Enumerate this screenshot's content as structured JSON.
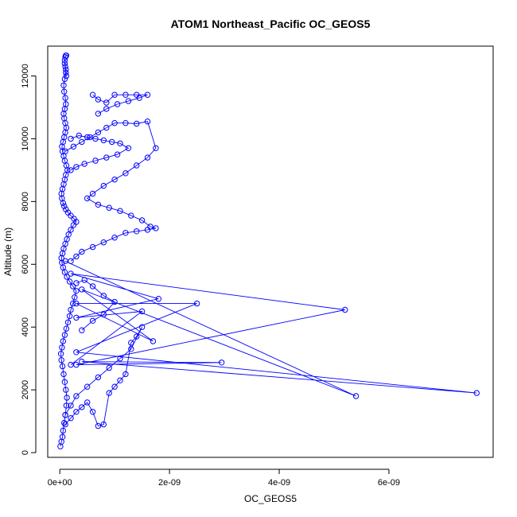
{
  "chart_data": {
    "type": "line",
    "title": "ATOM1 Northeast_Pacific OC_GEOS5",
    "xlabel": "OC_GEOS5",
    "ylabel": "Altitude (m)",
    "xlim": [
      -2.2e-10,
      7.9e-09
    ],
    "ylim": [
      -150,
      12950
    ],
    "x_ticks": [
      {
        "value": 0,
        "label": "0e+00"
      },
      {
        "value": 2e-09,
        "label": "2e-09"
      },
      {
        "value": 4e-09,
        "label": "4e-09"
      },
      {
        "value": 6e-09,
        "label": "6e-09"
      }
    ],
    "y_ticks": [
      {
        "value": 0,
        "label": "0"
      },
      {
        "value": 2000,
        "label": "2000"
      },
      {
        "value": 4000,
        "label": "4000"
      },
      {
        "value": 6000,
        "label": "6000"
      },
      {
        "value": 8000,
        "label": "8000"
      },
      {
        "value": 10000,
        "label": "10000"
      },
      {
        "value": 12000,
        "label": "12000"
      }
    ],
    "color": "#0000ff",
    "marker": "open-circle",
    "line": true,
    "grid": false,
    "legend": "none",
    "series": [
      {
        "x": [
          1e-11,
          3e-11,
          5e-11,
          6e-11,
          8e-11,
          1e-10,
          1.2e-10,
          1.3e-10,
          1.1e-10,
          9e-11,
          7e-11,
          5e-11,
          3e-11,
          2e-11,
          4e-11,
          6e-11,
          9e-11,
          1.2e-10,
          1.5e-10,
          1.8e-10,
          2e-10,
          2.4e-10,
          2.7e-10,
          3e-10,
          2.4e-10,
          1.8e-10,
          1.3e-10,
          9e-11,
          6e-11,
          4e-11,
          3e-11,
          5e-11,
          7e-11,
          1e-10,
          1.3e-10,
          1.6e-10,
          2e-10,
          2.5e-10,
          3e-10,
          2.6e-10,
          2e-10,
          1.5e-10,
          1.1e-10,
          8e-11,
          6e-11,
          4e-11,
          3e-11,
          5e-11,
          7e-11,
          9e-11,
          1.1e-10,
          1.4e-10,
          1.2e-10,
          9e-11,
          7e-11,
          5e-11,
          4e-11,
          6e-11,
          8e-11,
          1e-10,
          1.2e-10,
          1e-10,
          8e-11,
          7e-11,
          9e-11,
          1.1e-10,
          1e-10,
          8e-11,
          7e-11,
          9e-11,
          1.1e-10,
          1e-10,
          9e-11,
          1.1e-10,
          1.2e-10,
          1e-10,
          9e-11,
          1.1e-10,
          1.2e-10
        ],
        "y": [
          200,
          350,
          500,
          700,
          950,
          1200,
          1500,
          1750,
          2000,
          2250,
          2500,
          2750,
          2950,
          3150,
          3350,
          3550,
          3750,
          3950,
          4150,
          4350,
          4550,
          4750,
          4950,
          5150,
          5300,
          5450,
          5600,
          5750,
          5900,
          6050,
          6200,
          6350,
          6500,
          6650,
          6800,
          6950,
          7100,
          7250,
          7350,
          7450,
          7550,
          7650,
          7750,
          7850,
          7950,
          8100,
          8250,
          8400,
          8550,
          8700,
          8850,
          9000,
          9150,
          9300,
          9450,
          9600,
          9750,
          9900,
          10050,
          10200,
          10350,
          10500,
          10650,
          10800,
          10950,
          11100,
          11300,
          11500,
          11700,
          11900,
          12100,
          12300,
          12500,
          12650,
          12650,
          12600,
          12400,
          12200,
          12000
        ]
      },
      {
        "x": [
          1e-10,
          2.5e-10,
          4e-10,
          5.5e-10,
          7e-10,
          8.5e-10,
          1e-09,
          1.2e-09,
          1.4e-09,
          1.6e-09,
          1.75e-09,
          1.6e-09,
          1.4e-09,
          1.2e-09,
          1e-09,
          8e-10,
          6e-10,
          5e-10,
          7e-10,
          9e-10,
          1.1e-09,
          1.3e-09,
          1.5e-09,
          1.65e-09,
          1.75e-09,
          1.6e-09,
          1.4e-09,
          1.2e-09,
          1e-09,
          8e-10,
          6e-10,
          4e-10,
          3e-10,
          2e-10
        ],
        "y": [
          9600,
          9750,
          9900,
          10050,
          10200,
          10350,
          10500,
          10500,
          10480,
          10550,
          9700,
          9400,
          9150,
          8900,
          8700,
          8500,
          8250,
          8100,
          7900,
          7800,
          7700,
          7550,
          7400,
          7200,
          7150,
          7100,
          7050,
          7000,
          6850,
          6700,
          6550,
          6400,
          6250,
          6100
        ]
      },
      {
        "x": [
          6e-10,
          7e-10,
          8.5e-10,
          1e-09,
          1.2e-09,
          1.4e-09,
          1.6e-09,
          1.45e-09,
          1.25e-09,
          1.05e-09,
          8.5e-10,
          7e-10
        ],
        "y": [
          11400,
          11250,
          11150,
          11400,
          11400,
          11400,
          11400,
          11300,
          11200,
          11100,
          10950,
          10800
        ]
      },
      {
        "x": [
          1e-10,
          5.4e-09,
          4e-10,
          1.7e-09,
          3e-10,
          2.5e-09,
          3e-10,
          7.6e-09,
          4e-10,
          2.95e-09,
          3e-10,
          5.2e-09,
          2e-10,
          1.8e-09,
          3e-10,
          1.5e-09,
          2e-10
        ],
        "y": [
          6100,
          1800,
          5200,
          3550,
          4750,
          4750,
          3200,
          1900,
          2900,
          2870,
          2800,
          4550,
          5700,
          4900,
          4300,
          4500,
          2800
        ]
      },
      {
        "x": [
          1e-10,
          2e-10,
          3e-10,
          4e-10,
          5e-10,
          6e-10,
          7e-10,
          8e-10,
          9e-10,
          1e-09,
          1.1e-09,
          1.2e-09,
          1.3e-09,
          1.4e-09,
          1.5e-09,
          1.3e-09,
          1.1e-09,
          9e-10,
          7e-10,
          5e-10,
          3e-10,
          2e-10,
          1e-10
        ],
        "y": [
          900,
          1100,
          1300,
          1450,
          1600,
          1300,
          850,
          900,
          1900,
          2100,
          2300,
          2500,
          3500,
          3700,
          4000,
          3300,
          3000,
          2700,
          2400,
          2100,
          1800,
          1500,
          1200
        ]
      },
      {
        "x": [
          2e-10,
          3.5e-10,
          5e-10,
          6.5e-10,
          8e-10,
          9.5e-10,
          1.1e-09,
          1.25e-09,
          1.05e-09,
          8.5e-10,
          6.5e-10,
          4.5e-10,
          3e-10,
          2e-10
        ],
        "y": [
          10000,
          10100,
          10050,
          10000,
          9950,
          9900,
          9850,
          9700,
          9500,
          9400,
          9300,
          9200,
          9100,
          9000
        ]
      },
      {
        "x": [
          3e-10,
          4.5e-10,
          6e-10,
          8e-10,
          1e-09,
          8e-10,
          6e-10,
          4e-10
        ],
        "y": [
          5400,
          5500,
          5300,
          5000,
          4800,
          4400,
          4200,
          3900
        ]
      }
    ]
  }
}
